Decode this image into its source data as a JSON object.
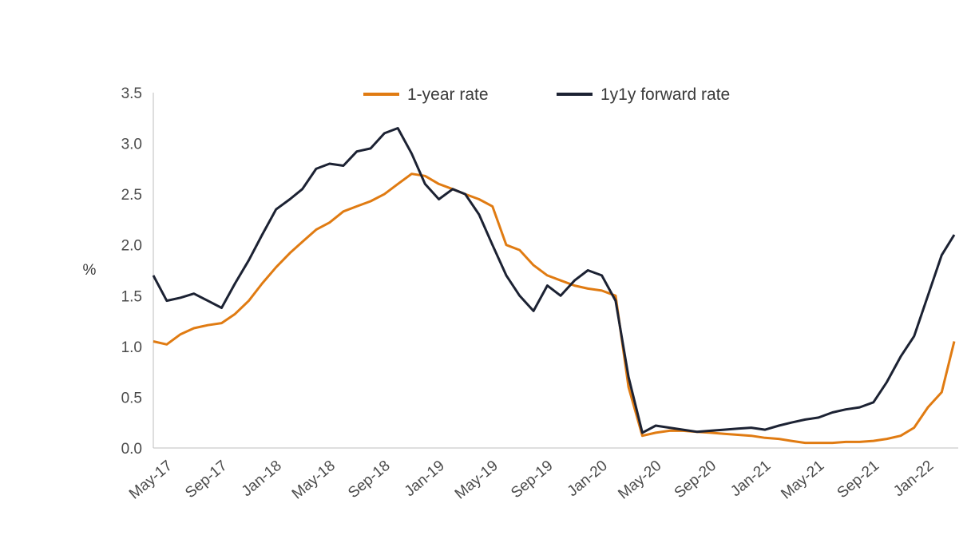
{
  "chart_data": {
    "type": "line",
    "title": "",
    "ylabel": "%",
    "xlabel": "",
    "ylim": [
      0,
      3.5
    ],
    "y_ticks": [
      "0.0",
      "0.5",
      "1.0",
      "1.5",
      "2.0",
      "2.5",
      "3.0",
      "3.5"
    ],
    "x_ticks": [
      "May-17",
      "Sep-17",
      "Jan-18",
      "May-18",
      "Sep-18",
      "Jan-19",
      "May-19",
      "Sep-19",
      "Jan-20",
      "May-20",
      "Sep-20",
      "Jan-21",
      "May-21",
      "Sep-21",
      "Jan-22"
    ],
    "legend_position": "top",
    "grid": false,
    "series": [
      {
        "name": "1-year rate",
        "color": "#e07b12",
        "x": [
          "2017-04",
          "2017-05",
          "2017-06",
          "2017-07",
          "2017-08",
          "2017-09",
          "2017-10",
          "2017-11",
          "2017-12",
          "2018-01",
          "2018-02",
          "2018-03",
          "2018-04",
          "2018-05",
          "2018-06",
          "2018-07",
          "2018-08",
          "2018-09",
          "2018-10",
          "2018-11",
          "2018-12",
          "2019-01",
          "2019-02",
          "2019-03",
          "2019-04",
          "2019-05",
          "2019-06",
          "2019-07",
          "2019-08",
          "2019-09",
          "2019-10",
          "2019-11",
          "2019-12",
          "2020-01",
          "2020-02",
          "2020-03",
          "2020-04",
          "2020-05",
          "2020-06",
          "2020-07",
          "2020-08",
          "2020-09",
          "2020-10",
          "2020-11",
          "2020-12",
          "2021-01",
          "2021-02",
          "2021-03",
          "2021-04",
          "2021-05",
          "2021-06",
          "2021-07",
          "2021-08",
          "2021-09",
          "2021-10",
          "2021-11",
          "2021-12",
          "2022-01",
          "2022-02",
          "2022-03"
        ],
        "values": [
          1.05,
          1.02,
          1.12,
          1.18,
          1.21,
          1.23,
          1.32,
          1.45,
          1.62,
          1.78,
          1.92,
          2.03,
          2.15,
          2.22,
          2.33,
          2.38,
          2.43,
          2.5,
          2.6,
          2.7,
          2.68,
          2.6,
          2.55,
          2.5,
          2.45,
          2.38,
          2.0,
          1.95,
          1.8,
          1.7,
          1.65,
          1.6,
          1.57,
          1.55,
          1.5,
          0.6,
          0.12,
          0.15,
          0.17,
          0.17,
          0.16,
          0.15,
          0.14,
          0.13,
          0.12,
          0.1,
          0.09,
          0.07,
          0.05,
          0.05,
          0.05,
          0.06,
          0.06,
          0.07,
          0.09,
          0.12,
          0.2,
          0.4,
          0.55,
          1.05
        ]
      },
      {
        "name": "1y1y forward rate",
        "color": "#1c2233",
        "x": [
          "2017-04",
          "2017-05",
          "2017-06",
          "2017-07",
          "2017-08",
          "2017-09",
          "2017-10",
          "2017-11",
          "2017-12",
          "2018-01",
          "2018-02",
          "2018-03",
          "2018-04",
          "2018-05",
          "2018-06",
          "2018-07",
          "2018-08",
          "2018-09",
          "2018-10",
          "2018-11",
          "2018-12",
          "2019-01",
          "2019-02",
          "2019-03",
          "2019-04",
          "2019-05",
          "2019-06",
          "2019-07",
          "2019-08",
          "2019-09",
          "2019-10",
          "2019-11",
          "2019-12",
          "2020-01",
          "2020-02",
          "2020-03",
          "2020-04",
          "2020-05",
          "2020-06",
          "2020-07",
          "2020-08",
          "2020-09",
          "2020-10",
          "2020-11",
          "2020-12",
          "2021-01",
          "2021-02",
          "2021-03",
          "2021-04",
          "2021-05",
          "2021-06",
          "2021-07",
          "2021-08",
          "2021-09",
          "2021-10",
          "2021-11",
          "2021-12",
          "2022-01",
          "2022-02",
          "2022-03"
        ],
        "values": [
          1.7,
          1.45,
          1.48,
          1.52,
          1.45,
          1.38,
          1.62,
          1.85,
          2.1,
          2.35,
          2.45,
          2.55,
          2.75,
          2.8,
          2.78,
          2.92,
          2.95,
          3.1,
          3.15,
          2.9,
          2.6,
          2.45,
          2.55,
          2.5,
          2.3,
          2.0,
          1.7,
          1.5,
          1.35,
          1.6,
          1.5,
          1.65,
          1.75,
          1.7,
          1.45,
          0.7,
          0.15,
          0.22,
          0.2,
          0.18,
          0.16,
          0.17,
          0.18,
          0.19,
          0.2,
          0.18,
          0.22,
          0.25,
          0.28,
          0.3,
          0.35,
          0.38,
          0.4,
          0.45,
          0.65,
          0.9,
          1.1,
          1.5,
          1.9,
          2.1
        ]
      }
    ]
  }
}
